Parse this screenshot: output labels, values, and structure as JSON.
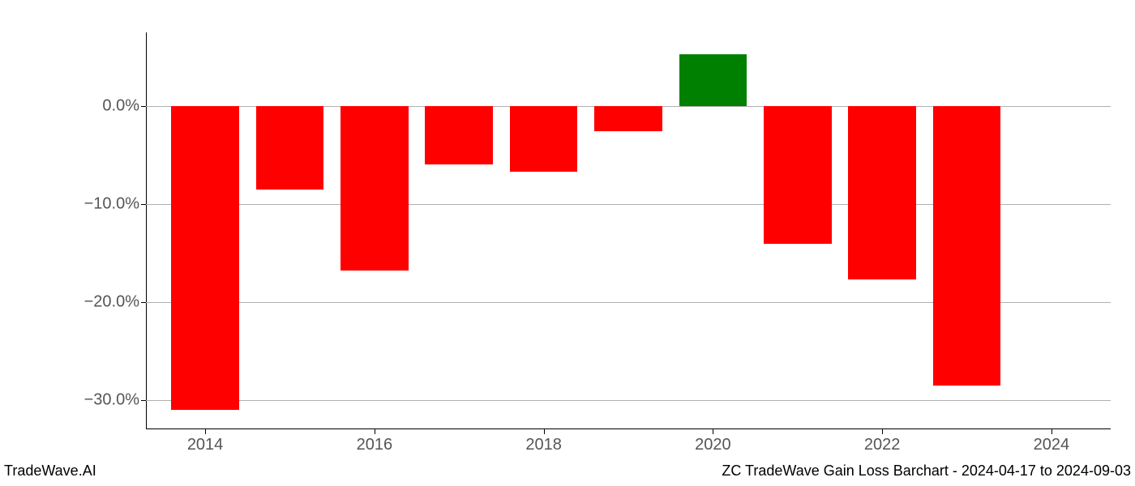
{
  "chart": {
    "type": "bar",
    "background_color": "#ffffff",
    "grid_color": "#b0b0b0",
    "axis_color": "#000000",
    "label_color": "#555555",
    "label_fontsize": 20,
    "footer_fontsize": 18,
    "footer_color": "#000000",
    "positive_color": "#008000",
    "negative_color": "#ff0000",
    "bar_width_ratio": 0.8,
    "ylim": [
      -33.0,
      7.5
    ],
    "y_ticks": [
      {
        "value": 0.0,
        "label": "0.0%"
      },
      {
        "value": -10.0,
        "label": "−10.0%"
      },
      {
        "value": -20.0,
        "label": "−20.0%"
      },
      {
        "value": -30.0,
        "label": "−30.0%"
      }
    ],
    "x_ticks": [
      {
        "year": 2014,
        "label": "2014"
      },
      {
        "year": 2016,
        "label": "2016"
      },
      {
        "year": 2018,
        "label": "2018"
      },
      {
        "year": 2020,
        "label": "2020"
      },
      {
        "year": 2022,
        "label": "2022"
      },
      {
        "year": 2024,
        "label": "2024"
      }
    ],
    "x_domain": [
      2013.3,
      2024.7
    ],
    "bars": [
      {
        "year": 2014,
        "value": -31.0
      },
      {
        "year": 2015,
        "value": -8.5
      },
      {
        "year": 2016,
        "value": -16.8
      },
      {
        "year": 2017,
        "value": -6.0
      },
      {
        "year": 2018,
        "value": -6.7
      },
      {
        "year": 2019,
        "value": -2.6
      },
      {
        "year": 2020,
        "value": 5.3
      },
      {
        "year": 2021,
        "value": -14.1
      },
      {
        "year": 2022,
        "value": -17.7
      },
      {
        "year": 2023,
        "value": -28.5
      }
    ]
  },
  "footer": {
    "left": "TradeWave.AI",
    "right": "ZC TradeWave Gain Loss Barchart - 2024-04-17 to 2024-09-03"
  }
}
